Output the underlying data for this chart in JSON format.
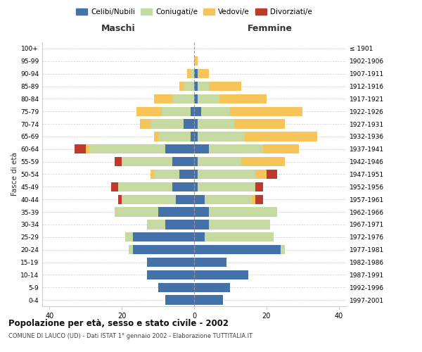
{
  "age_groups": [
    "0-4",
    "5-9",
    "10-14",
    "15-19",
    "20-24",
    "25-29",
    "30-34",
    "35-39",
    "40-44",
    "45-49",
    "50-54",
    "55-59",
    "60-64",
    "65-69",
    "70-74",
    "75-79",
    "80-84",
    "85-89",
    "90-94",
    "95-99",
    "100+"
  ],
  "birth_years": [
    "1997-2001",
    "1992-1996",
    "1987-1991",
    "1982-1986",
    "1977-1981",
    "1972-1976",
    "1967-1971",
    "1962-1966",
    "1957-1961",
    "1952-1956",
    "1947-1951",
    "1942-1946",
    "1937-1941",
    "1932-1936",
    "1927-1931",
    "1922-1926",
    "1917-1921",
    "1912-1916",
    "1907-1911",
    "1902-1906",
    "≤ 1901"
  ],
  "male_celibi": [
    8,
    10,
    13,
    13,
    17,
    17,
    8,
    10,
    5,
    6,
    4,
    6,
    8,
    1,
    3,
    1,
    0,
    0,
    0,
    0,
    0
  ],
  "male_coniugati": [
    0,
    0,
    0,
    0,
    1,
    2,
    5,
    12,
    15,
    15,
    7,
    14,
    21,
    9,
    9,
    8,
    6,
    3,
    1,
    0,
    0
  ],
  "male_vedovi": [
    0,
    0,
    0,
    0,
    0,
    0,
    0,
    0,
    0,
    0,
    1,
    0,
    1,
    1,
    3,
    7,
    5,
    1,
    1,
    0,
    0
  ],
  "male_divorziati": [
    0,
    0,
    0,
    0,
    0,
    0,
    0,
    0,
    1,
    2,
    0,
    2,
    3,
    0,
    0,
    0,
    0,
    0,
    0,
    0,
    0
  ],
  "female_celibi": [
    8,
    10,
    15,
    9,
    24,
    3,
    4,
    4,
    3,
    1,
    1,
    1,
    4,
    1,
    1,
    2,
    1,
    1,
    1,
    0,
    0
  ],
  "female_coniugati": [
    0,
    0,
    0,
    0,
    1,
    19,
    17,
    19,
    13,
    16,
    16,
    12,
    15,
    13,
    10,
    8,
    6,
    3,
    0,
    0,
    0
  ],
  "female_vedovi": [
    0,
    0,
    0,
    0,
    0,
    0,
    0,
    0,
    1,
    0,
    3,
    12,
    10,
    20,
    14,
    20,
    13,
    9,
    3,
    1,
    0
  ],
  "female_divorziati": [
    0,
    0,
    0,
    0,
    0,
    0,
    0,
    0,
    2,
    2,
    3,
    0,
    0,
    0,
    0,
    0,
    0,
    0,
    0,
    0,
    0
  ],
  "colors": {
    "celibi": "#4472a8",
    "coniugati": "#c5d9a0",
    "vedovi": "#f5c55a",
    "divorziati": "#c0392b"
  },
  "title1": "Popolazione per età, sesso e stato civile - 2002",
  "title2": "COMUNE DI LAUCO (UD) - Dati ISTAT 1° gennaio 2002 - Elaborazione TUTTITALIA.IT",
  "xlabel_left": "Maschi",
  "xlabel_right": "Femmine",
  "ylabel_left": "Fasce di età",
  "xlim": 42,
  "background_color": "#ffffff",
  "grid_color": "#cccccc"
}
